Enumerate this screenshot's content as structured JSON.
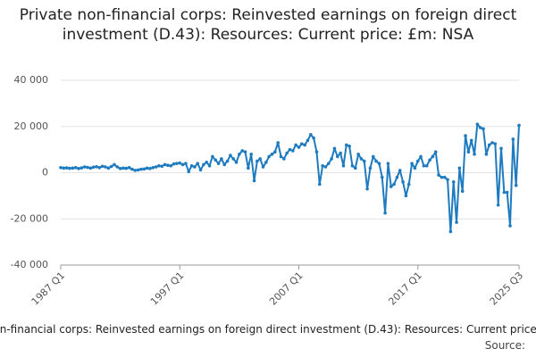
{
  "chart_data": {
    "type": "line",
    "title": "Private non-financial corps: Reinvested earnings on foreign direct investment (D.43): Resources: Current price: £m: NSA",
    "source": "Source:",
    "categories": [
      "1987 Q1",
      null,
      null,
      null,
      null,
      null,
      null,
      null,
      null,
      null,
      null,
      null,
      null,
      null,
      null,
      null,
      null,
      null,
      null,
      null,
      null,
      null,
      null,
      null,
      null,
      null,
      null,
      null,
      null,
      null,
      null,
      null,
      null,
      null,
      null,
      null,
      null,
      null,
      null,
      null,
      "1997 Q1",
      null,
      null,
      null,
      null,
      null,
      null,
      null,
      null,
      null,
      null,
      null,
      null,
      null,
      null,
      null,
      null,
      null,
      null,
      null,
      null,
      null,
      null,
      null,
      null,
      null,
      null,
      null,
      null,
      null,
      null,
      null,
      null,
      null,
      null,
      null,
      null,
      null,
      null,
      null,
      "2007 Q1",
      null,
      null,
      null,
      null,
      null,
      null,
      null,
      null,
      null,
      null,
      null,
      null,
      null,
      null,
      null,
      null,
      null,
      null,
      null,
      null,
      null,
      null,
      null,
      null,
      null,
      null,
      null,
      null,
      null,
      null,
      null,
      null,
      null,
      null,
      null,
      null,
      null,
      null,
      null,
      "2017 Q1",
      null,
      null,
      null,
      null,
      null,
      null,
      null,
      null,
      null,
      null,
      null,
      null,
      null,
      null,
      null,
      null,
      null,
      null,
      null,
      null,
      null,
      null,
      null,
      null,
      null,
      null,
      null,
      null,
      null,
      null,
      null,
      null,
      null,
      "2025 Q3"
    ],
    "series": [
      {
        "name": "Private non-financial corps: Reinvested earnings on foreign direct investment (D.43): Resources: Current price: £m: NSA",
        "color": "#1f7bbf",
        "values": [
          2200,
          2000,
          2100,
          1900,
          2000,
          2200,
          1800,
          2100,
          2500,
          2300,
          2000,
          2400,
          2600,
          2200,
          2800,
          2500,
          2000,
          2700,
          3500,
          2500,
          1800,
          2000,
          1900,
          2200,
          1500,
          1000,
          1200,
          1500,
          1600,
          2000,
          1800,
          2200,
          2500,
          3000,
          2800,
          3500,
          3200,
          3000,
          3800,
          4000,
          4200,
          3500,
          4000,
          500,
          3000,
          2500,
          4000,
          1200,
          3500,
          4500,
          3000,
          7000,
          5500,
          4000,
          6000,
          3500,
          5000,
          7500,
          6000,
          4500,
          8000,
          9500,
          9000,
          2000,
          8000,
          -3500,
          5000,
          6000,
          2500,
          4500,
          7000,
          8000,
          9000,
          13000,
          7000,
          6000,
          8500,
          10000,
          9500,
          12000,
          11000,
          12500,
          12000,
          14000,
          16500,
          15000,
          9000,
          -5000,
          3000,
          2500,
          4000,
          6000,
          10500,
          7000,
          8500,
          3000,
          12000,
          11500,
          3000,
          2000,
          8000,
          6000,
          5000,
          -7000,
          2000,
          7000,
          5000,
          4000,
          -2000,
          -17500,
          4000,
          -6000,
          -5000,
          -2000,
          1000,
          -4000,
          -10000,
          -5000,
          4000,
          2000,
          5000,
          7000,
          3000,
          3000,
          5500,
          7000,
          9000,
          -1000,
          -2000,
          -2000,
          -3000,
          -25500,
          -4000,
          -21500,
          2000,
          -8000,
          16000,
          9000,
          14000,
          8000,
          21000,
          19500,
          19000,
          8000,
          12000,
          13000,
          12500,
          -14000,
          10500,
          -8500,
          -8500,
          -23000,
          14500,
          -5500,
          20500
        ]
      }
    ],
    "ylim": [
      -40000,
      40000
    ],
    "yticks": [
      {
        "value": -40000,
        "label": "-40 000"
      },
      {
        "value": -20000,
        "label": "-20 000"
      },
      0,
      {
        "value": 20000,
        "label": "20 000"
      },
      {
        "value": 40000,
        "label": "40 000"
      }
    ],
    "grid": true
  }
}
